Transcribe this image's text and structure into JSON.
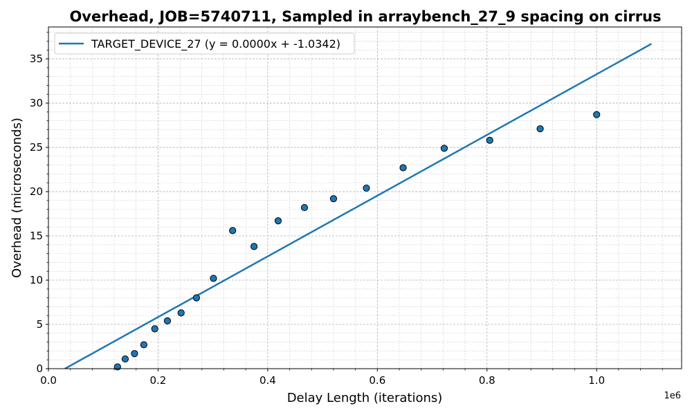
{
  "chart_data": {
    "type": "scatter",
    "title": "Overhead, JOB=5740711, Sampled in arraybench_27_9 spacing on cirrus",
    "xlabel": "Delay Length (iterations)",
    "ylabel": "Overhead (microseconds)",
    "x_offset_label": "1e6",
    "xlim": [
      0,
      1155000
    ],
    "ylim": [
      0,
      38.6
    ],
    "x_ticks": [
      0,
      200000,
      400000,
      600000,
      800000,
      1000000
    ],
    "x_tick_labels": [
      "0.0",
      "0.2",
      "0.4",
      "0.6",
      "0.8",
      "1.0"
    ],
    "y_ticks": [
      0,
      5,
      10,
      15,
      20,
      25,
      30,
      35
    ],
    "y_tick_labels": [
      "0",
      "5",
      "10",
      "15",
      "20",
      "25",
      "30",
      "35"
    ],
    "grid": true,
    "minor_grid": true,
    "legend_position": "top-left",
    "marker_color": "#1f77b4",
    "line_color": "#1f77b4",
    "points": [
      {
        "x": 126000,
        "y": 0.2
      },
      {
        "x": 140000,
        "y": 1.1
      },
      {
        "x": 157000,
        "y": 1.7
      },
      {
        "x": 174000,
        "y": 2.7
      },
      {
        "x": 194000,
        "y": 4.5
      },
      {
        "x": 217000,
        "y": 5.4
      },
      {
        "x": 242000,
        "y": 6.3
      },
      {
        "x": 270000,
        "y": 8.0
      },
      {
        "x": 301000,
        "y": 10.2
      },
      {
        "x": 336000,
        "y": 15.6
      },
      {
        "x": 375000,
        "y": 13.8
      },
      {
        "x": 419000,
        "y": 16.7
      },
      {
        "x": 467000,
        "y": 18.2
      },
      {
        "x": 520000,
        "y": 19.2
      },
      {
        "x": 580000,
        "y": 20.4
      },
      {
        "x": 647000,
        "y": 22.7
      },
      {
        "x": 722000,
        "y": 24.9
      },
      {
        "x": 805000,
        "y": 25.8
      },
      {
        "x": 897000,
        "y": 27.1
      },
      {
        "x": 1000000,
        "y": 28.7
      }
    ],
    "fit_line": {
      "name": "TARGET_DEVICE_27 (y = 0.0000x + -1.0342)",
      "slope": 3.43e-05,
      "intercept": -1.0342,
      "x_range": [
        30000,
        1100000
      ]
    }
  }
}
